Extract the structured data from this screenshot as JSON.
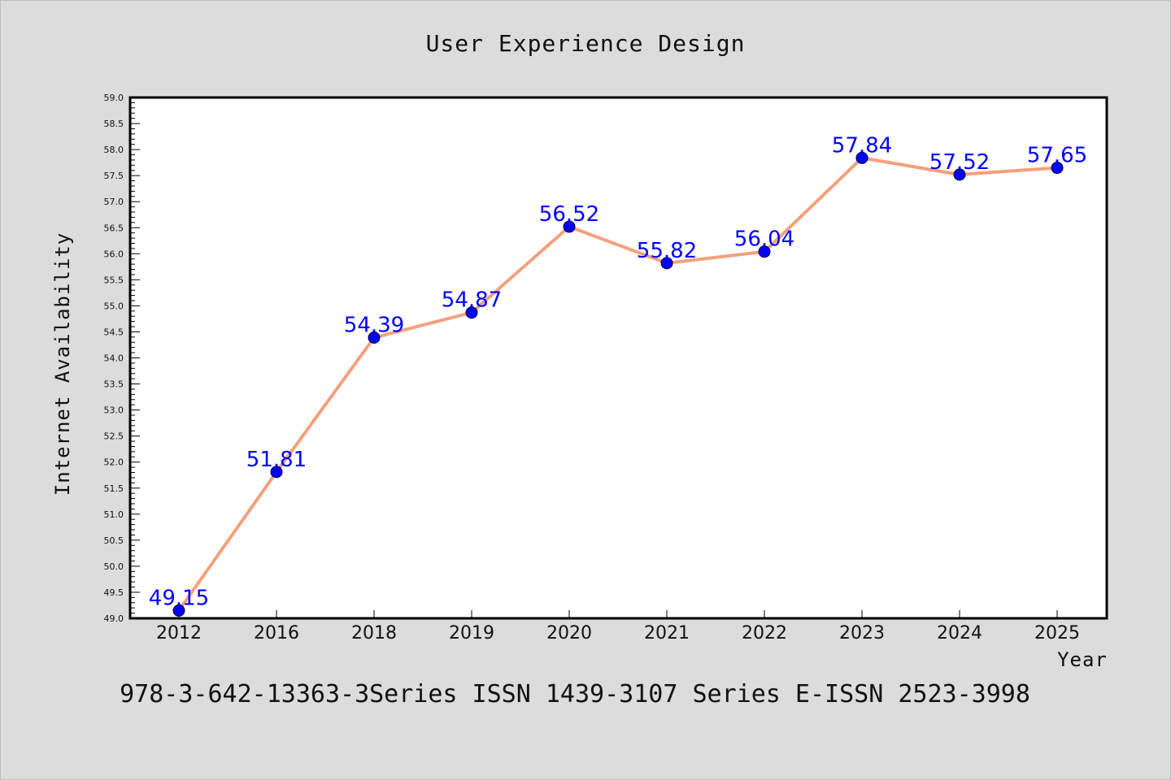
{
  "chart_data": {
    "type": "line",
    "title": "User Experience Design",
    "xlabel": "Year",
    "ylabel": "Internet Availability",
    "categories": [
      "2012",
      "2016",
      "2018",
      "2019",
      "2020",
      "2021",
      "2022",
      "2023",
      "2024",
      "2025"
    ],
    "series": [
      {
        "values": [
          49.15,
          51.81,
          54.39,
          54.87,
          56.52,
          55.82,
          56.04,
          57.84,
          57.52,
          57.65
        ],
        "labels": [
          "49.15",
          "51.81",
          "54.39",
          "54.87",
          "56.52",
          "55.82",
          "56.04",
          "57.84",
          "57.52",
          "57.65"
        ],
        "line_color": "#f4a07e",
        "marker_color": "#0000ff",
        "label_color": "#0000ff"
      }
    ],
    "ylim": [
      49.0,
      59.0
    ],
    "yticks": [
      "49.0",
      "49.5",
      "50.0",
      "50.5",
      "51.0",
      "51.5",
      "52.0",
      "52.5",
      "53.0",
      "53.5",
      "54.0",
      "54.5",
      "55.0",
      "55.5",
      "56.0",
      "56.5",
      "57.0",
      "57.5",
      "58.0",
      "58.5",
      "59.0"
    ],
    "grid": false,
    "legend": "none",
    "footer": "978-3-642-13363-3Series ISSN 1439-3107 Series E-ISSN 2523-3998"
  },
  "colors": {
    "background": "#dcdcdc",
    "plot_background": "#ffffff",
    "frame": "#000000"
  }
}
